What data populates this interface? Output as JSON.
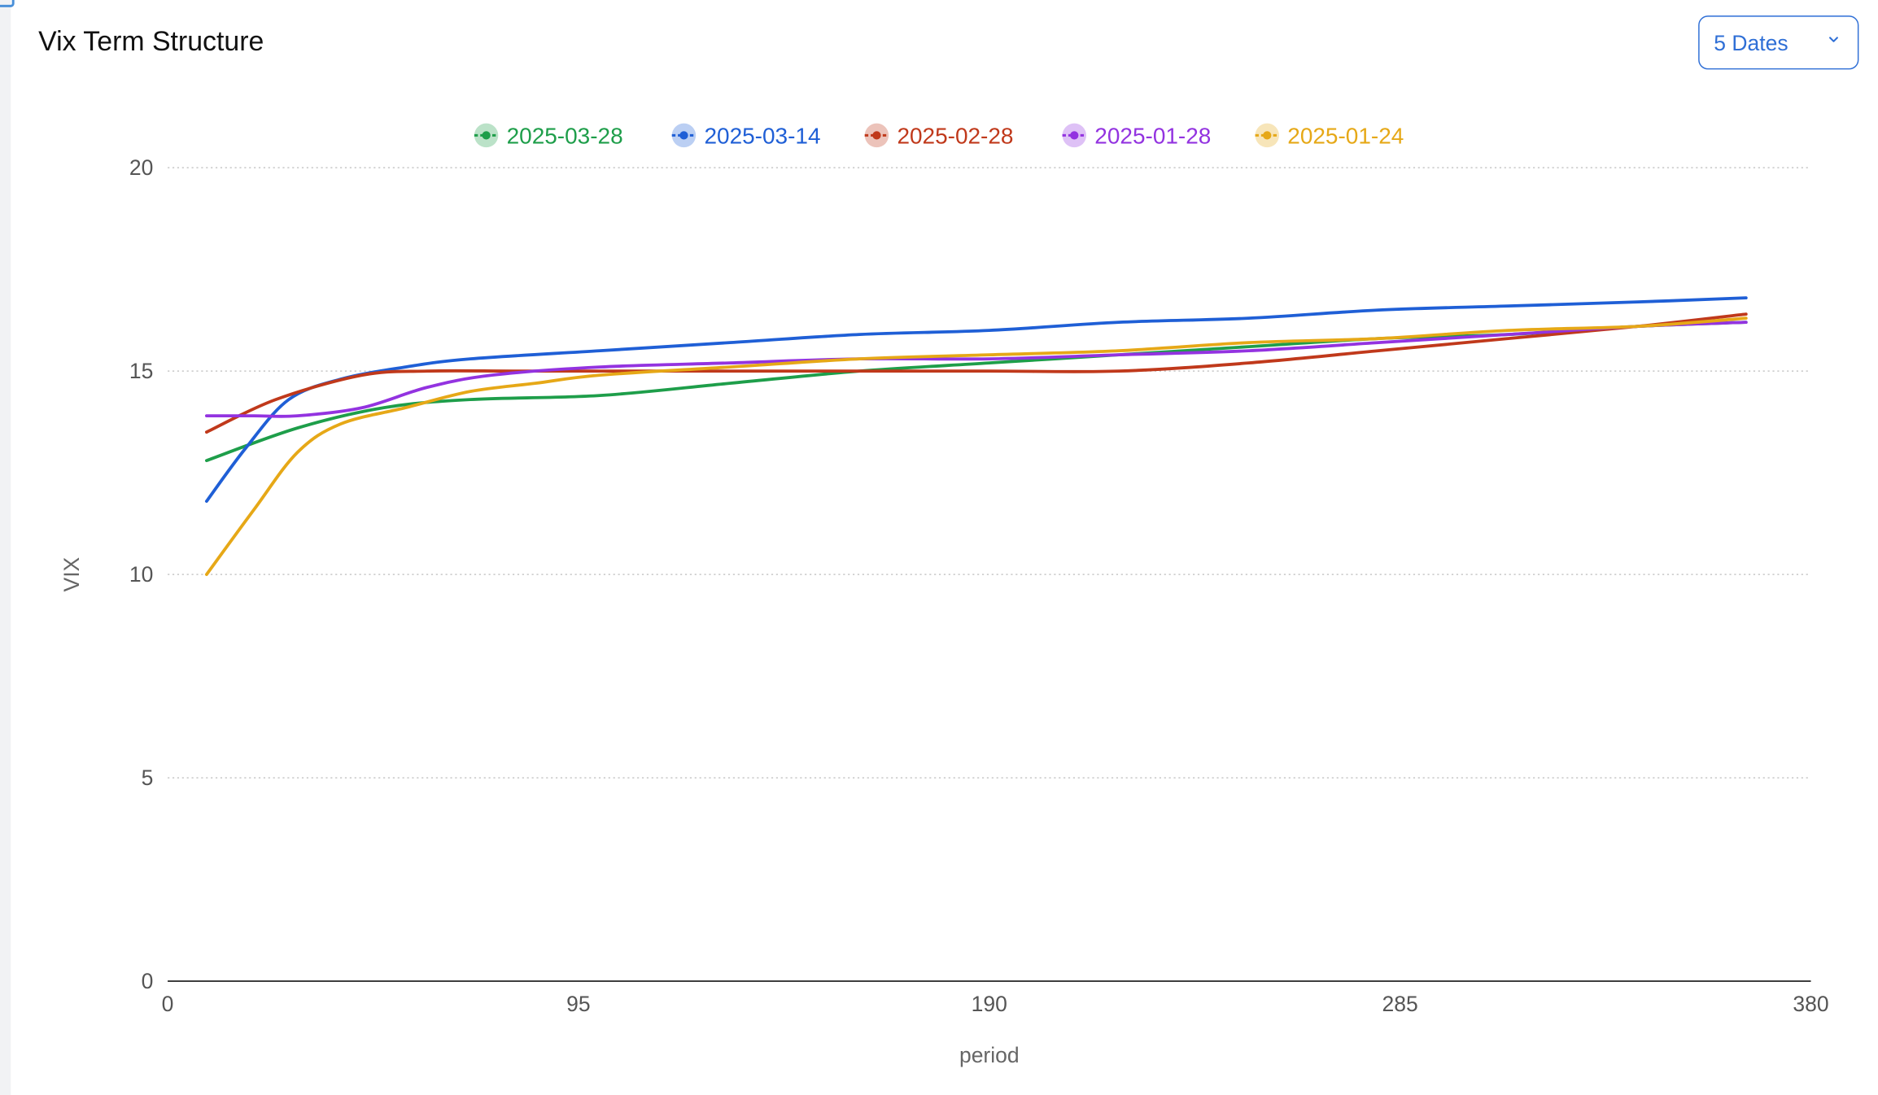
{
  "title": "Vix Term Structure",
  "date_selector": {
    "label": "5 Dates"
  },
  "colors": {
    "grid": "#c8c8c8",
    "axis": "#333333",
    "accent": "#2f6fd6"
  },
  "chart_data": {
    "type": "line",
    "title": "",
    "xlabel": "period",
    "ylabel": "VIX",
    "xlim": [
      0,
      380
    ],
    "ylim": [
      0,
      20
    ],
    "x_ticks": [
      0,
      95,
      190,
      285,
      380
    ],
    "y_ticks": [
      0,
      5,
      10,
      15,
      20
    ],
    "grid": "horizontal dotted",
    "legend_position": "top-center",
    "series": [
      {
        "name": "2025-03-28",
        "color": "#1e9e4a",
        "x": [
          9,
          30,
          50,
          70,
          100,
          130,
          160,
          190,
          220,
          250,
          280,
          310,
          340,
          365
        ],
        "y": [
          12.8,
          13.6,
          14.1,
          14.3,
          14.4,
          14.7,
          15.0,
          15.2,
          15.4,
          15.6,
          15.8,
          15.9,
          16.1,
          16.2
        ]
      },
      {
        "name": "2025-03-14",
        "color": "#1f5fd6",
        "x": [
          9,
          18,
          28,
          40,
          55,
          70,
          100,
          130,
          160,
          190,
          220,
          250,
          280,
          310,
          340,
          365
        ],
        "y": [
          11.8,
          13.1,
          14.3,
          14.8,
          15.1,
          15.3,
          15.5,
          15.7,
          15.9,
          16.0,
          16.2,
          16.3,
          16.5,
          16.6,
          16.7,
          16.8
        ]
      },
      {
        "name": "2025-02-28",
        "color": "#c0391b",
        "x": [
          9,
          25,
          45,
          60,
          80,
          100,
          130,
          160,
          190,
          220,
          250,
          280,
          310,
          340,
          365
        ],
        "y": [
          13.5,
          14.3,
          14.9,
          15.0,
          15.0,
          15.0,
          15.0,
          15.0,
          15.0,
          15.0,
          15.2,
          15.5,
          15.8,
          16.1,
          16.4
        ]
      },
      {
        "name": "2025-01-28",
        "color": "#9333e0",
        "x": [
          9,
          20,
          30,
          45,
          60,
          75,
          100,
          130,
          160,
          190,
          220,
          250,
          280,
          310,
          340,
          365
        ],
        "y": [
          13.9,
          13.9,
          13.9,
          14.1,
          14.6,
          14.9,
          15.1,
          15.2,
          15.3,
          15.3,
          15.4,
          15.5,
          15.7,
          15.9,
          16.1,
          16.2
        ]
      },
      {
        "name": "2025-01-24",
        "color": "#e6a817",
        "x": [
          9,
          20,
          30,
          40,
          55,
          70,
          85,
          100,
          130,
          160,
          190,
          220,
          250,
          280,
          310,
          340,
          365
        ],
        "y": [
          10.0,
          11.6,
          13.0,
          13.7,
          14.1,
          14.5,
          14.7,
          14.9,
          15.1,
          15.3,
          15.4,
          15.5,
          15.7,
          15.8,
          16.0,
          16.1,
          16.3
        ]
      }
    ]
  }
}
